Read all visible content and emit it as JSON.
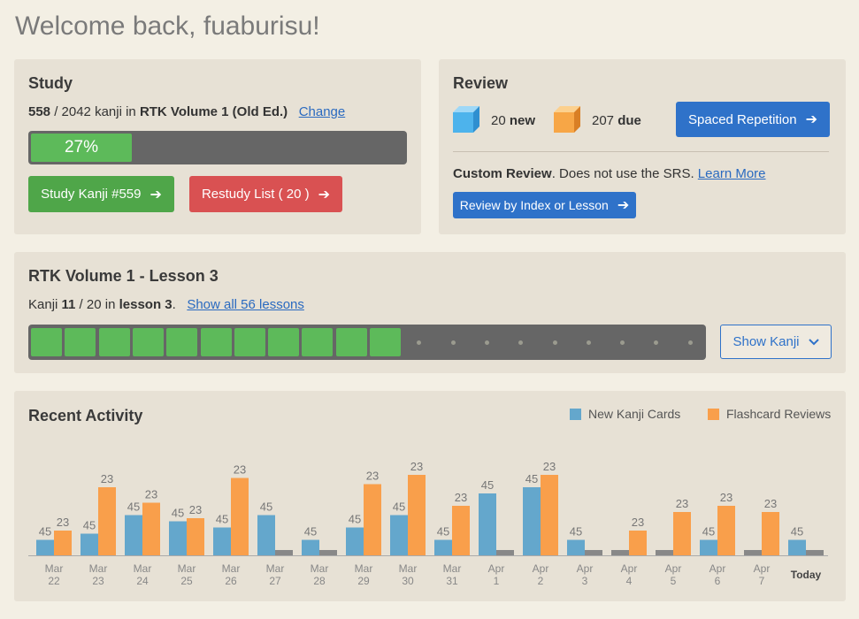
{
  "greeting": "Welcome back, fuaburisu!",
  "study": {
    "title": "Study",
    "count": "558",
    "total_text": " / 2042 kanji in ",
    "book": "RTK Volume 1 (Old Ed.)",
    "change_link": "Change",
    "progress_label": "27%",
    "progress": 0.27,
    "study_button": "Study Kanji #559",
    "restudy_button": "Restudy List ( 20 )"
  },
  "review": {
    "title": "Review",
    "new_count": "20",
    "new_label": "new",
    "due_count": "207",
    "due_label": "due",
    "srs_button": "Spaced Repetition",
    "custom_title": "Custom Review",
    "custom_text": ". Does not use the SRS. ",
    "learn_more": "Learn More",
    "index_button": "Review by Index or Lesson"
  },
  "lesson": {
    "title": "RTK Volume 1 - Lesson 3",
    "kanji_prefix": "Kanji ",
    "done": "11",
    "of_text": " / 20 in ",
    "lesson_label": "lesson 3",
    "period": ".",
    "show_all": "Show all 56 lessons",
    "done_count": 11,
    "total_count": 20,
    "show_kanji": "Show Kanji"
  },
  "activity": {
    "title": "Recent Activity"
  },
  "chart_data": {
    "type": "bar",
    "categories": [
      [
        "Mar",
        "22"
      ],
      [
        "Mar",
        "23"
      ],
      [
        "Mar",
        "24"
      ],
      [
        "Mar",
        "25"
      ],
      [
        "Mar",
        "26"
      ],
      [
        "Mar",
        "27"
      ],
      [
        "Mar",
        "28"
      ],
      [
        "Mar",
        "29"
      ],
      [
        "Mar",
        "30"
      ],
      [
        "Mar",
        "31"
      ],
      [
        "Apr",
        "1"
      ],
      [
        "Apr",
        "2"
      ],
      [
        "Apr",
        "3"
      ],
      [
        "Apr",
        "4"
      ],
      [
        "Apr",
        "5"
      ],
      [
        "Apr",
        "6"
      ],
      [
        "Apr",
        "7"
      ],
      [
        "Today"
      ]
    ],
    "series": [
      {
        "name": "New Kanji Cards",
        "color": "#64a7cc",
        "values": [
          5,
          7,
          13,
          11,
          9,
          13,
          5,
          9,
          13,
          5,
          20,
          22,
          5,
          0,
          0,
          5,
          0,
          5
        ]
      },
      {
        "name": "Flashcard Reviews",
        "color": "#f99f4b",
        "values": [
          8,
          22,
          17,
          12,
          25,
          0,
          0,
          23,
          26,
          16,
          0,
          26,
          0,
          8,
          14,
          16,
          14,
          0
        ]
      }
    ],
    "zero_bar_color": "#888888",
    "bar_labels": {
      "New Kanji Cards": [
        "45",
        "45",
        "45",
        "45",
        "45",
        "45",
        "45",
        "45",
        "45",
        "45",
        "45",
        "45",
        "45",
        "",
        "",
        "45",
        "",
        "45"
      ],
      "Flashcard Reviews": [
        "23",
        "23",
        "23",
        "23",
        "23",
        "",
        "",
        "23",
        "23",
        "23",
        "",
        "23",
        "",
        "23",
        "23",
        "23",
        "23",
        ""
      ]
    },
    "legend_position": "top-right"
  }
}
